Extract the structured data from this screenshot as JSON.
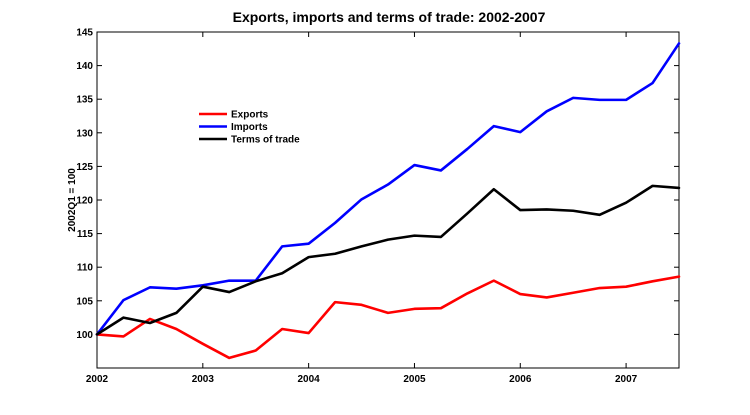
{
  "chart_data": {
    "type": "line",
    "title": "Exports, imports and terms of trade: 2002-2007",
    "xlabel": "",
    "ylabel": "2002Q1 = 100",
    "xlim": [
      2002,
      2007.5
    ],
    "ylim": [
      95,
      145
    ],
    "x_ticks": [
      2002,
      2003,
      2004,
      2005,
      2006,
      2007
    ],
    "y_ticks": [
      100,
      105,
      110,
      115,
      120,
      125,
      130,
      135,
      140,
      145
    ],
    "grid": false,
    "legend_position": "upper-left",
    "x": [
      2002.0,
      2002.25,
      2002.5,
      2002.75,
      2003.0,
      2003.25,
      2003.5,
      2003.75,
      2004.0,
      2004.25,
      2004.5,
      2004.75,
      2005.0,
      2005.25,
      2005.5,
      2005.75,
      2006.0,
      2006.25,
      2006.5,
      2006.75,
      2007.0,
      2007.25,
      2007.5
    ],
    "series": [
      {
        "name": "Exports",
        "color": "#ff0000",
        "values": [
          100.0,
          99.7,
          102.3,
          100.8,
          98.6,
          96.5,
          97.6,
          100.8,
          100.2,
          104.8,
          104.4,
          103.2,
          103.8,
          103.9,
          106.1,
          108.0,
          106.0,
          105.5,
          106.2,
          106.9,
          107.1,
          107.9,
          108.6
        ]
      },
      {
        "name": "Imports",
        "color": "#0000ff",
        "values": [
          100.0,
          105.1,
          107.0,
          106.8,
          107.3,
          108.0,
          108.0,
          113.1,
          113.5,
          116.6,
          120.1,
          122.3,
          125.2,
          124.4,
          127.6,
          131.0,
          130.1,
          133.2,
          135.2,
          134.9,
          134.9,
          137.4,
          143.3
        ]
      },
      {
        "name": "Terms of trade",
        "color": "#000000",
        "values": [
          100.0,
          102.5,
          101.7,
          103.2,
          107.1,
          106.3,
          107.9,
          109.1,
          111.5,
          112.0,
          113.1,
          114.1,
          114.7,
          114.5,
          118.0,
          121.6,
          118.5,
          118.6,
          118.4,
          117.8,
          119.6,
          122.1,
          121.8
        ]
      }
    ]
  }
}
